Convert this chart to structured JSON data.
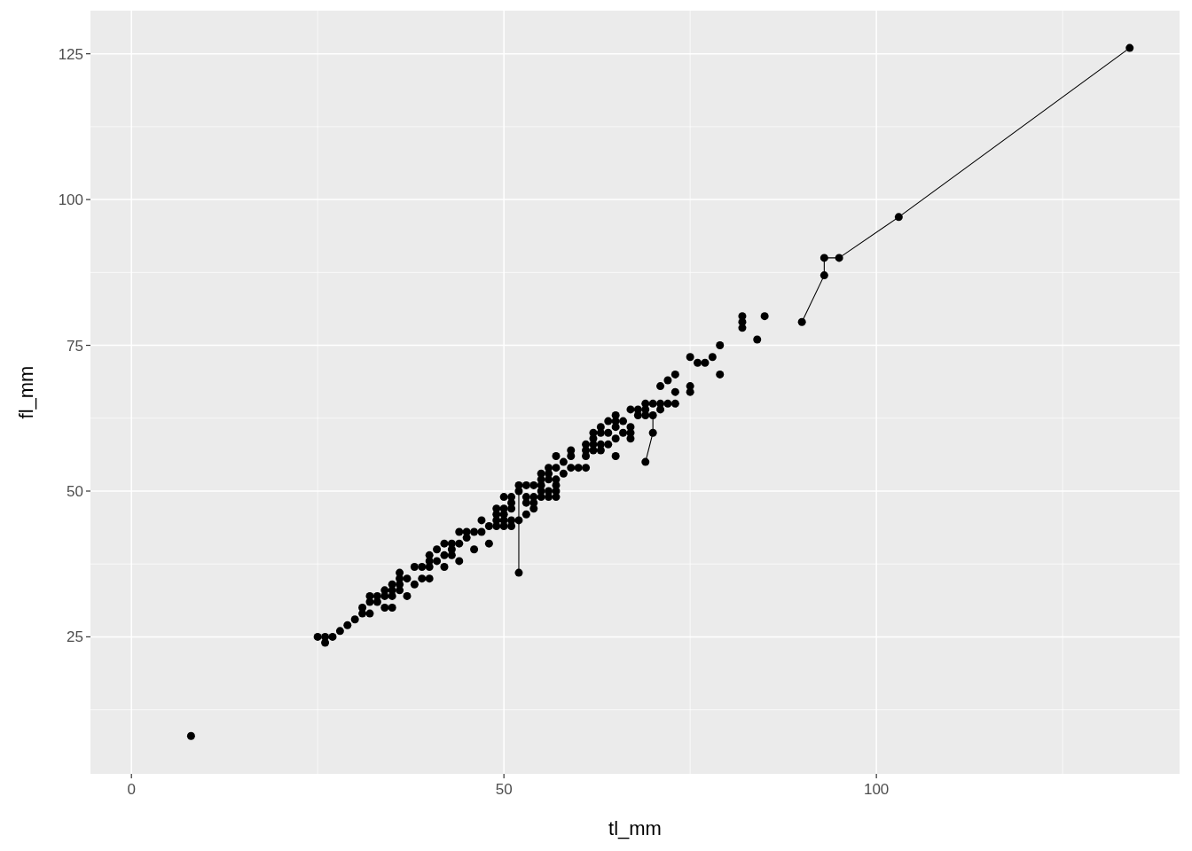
{
  "chart_data": {
    "type": "scatter",
    "xlabel": "tl_mm",
    "ylabel": "fl_mm",
    "xlim": [
      -5.5,
      140.7
    ],
    "ylim": [
      1.5,
      132.4
    ],
    "xticks": [
      0,
      50,
      100
    ],
    "yticks": [
      25,
      50,
      75,
      100,
      125
    ],
    "grid": true,
    "marker": "circle",
    "line_style": "solid",
    "series": [
      {
        "type": "line",
        "marker": "none",
        "color": "#000000",
        "x": [
          52,
          52
        ],
        "values": [
          36,
          51
        ]
      },
      {
        "type": "line",
        "marker": "none",
        "color": "#000000",
        "x": [
          69,
          70,
          70
        ],
        "values": [
          55,
          60,
          63
        ]
      },
      {
        "type": "line",
        "marker": "none",
        "color": "#000000",
        "x": [
          90,
          93,
          93,
          95,
          103,
          134
        ],
        "values": [
          79,
          87,
          90,
          90,
          97,
          126
        ]
      },
      {
        "color": "#000000",
        "x": [
          8,
          25,
          26,
          26,
          27,
          28,
          29,
          30,
          31,
          31,
          32,
          32,
          32,
          33,
          33,
          34,
          34,
          34,
          35,
          35,
          35,
          35,
          36,
          36,
          36,
          36,
          37,
          37,
          38,
          38,
          39,
          39,
          40,
          40,
          40,
          40,
          41,
          41,
          42,
          42,
          42,
          43,
          43,
          43,
          44,
          44,
          44,
          45,
          45,
          46,
          46,
          47,
          47,
          48,
          48,
          49,
          49,
          49,
          49,
          50,
          50,
          50,
          50,
          50,
          51,
          51,
          51,
          51,
          51,
          52,
          52,
          52,
          52,
          53,
          53,
          53,
          53,
          54,
          54,
          54,
          54,
          55,
          55,
          55,
          55,
          55,
          56,
          56,
          56,
          56,
          56,
          57,
          57,
          57,
          57,
          57,
          57,
          58,
          58,
          59,
          59,
          59,
          60,
          61,
          61,
          61,
          61,
          62,
          62,
          62,
          62,
          63,
          63,
          63,
          63,
          64,
          64,
          64,
          65,
          65,
          65,
          65,
          65,
          66,
          66,
          67,
          67,
          67,
          67,
          68,
          68,
          69,
          69,
          69,
          69,
          70,
          70,
          70,
          71,
          71,
          71,
          72,
          72,
          73,
          73,
          73,
          75,
          75,
          75,
          76,
          77,
          78,
          79,
          79,
          82,
          82,
          82,
          84,
          85,
          90,
          93,
          93,
          95,
          103,
          134
        ],
        "values": [
          8,
          25,
          24,
          25,
          25,
          26,
          27,
          28,
          29,
          30,
          29,
          31,
          32,
          31,
          32,
          30,
          32,
          33,
          30,
          32,
          33,
          34,
          33,
          34,
          35,
          36,
          32,
          35,
          34,
          37,
          35,
          37,
          35,
          37,
          38,
          39,
          38,
          40,
          37,
          39,
          41,
          39,
          40,
          41,
          38,
          41,
          43,
          42,
          43,
          40,
          43,
          43,
          45,
          41,
          44,
          44,
          45,
          46,
          47,
          44,
          45,
          46,
          47,
          49,
          44,
          45,
          47,
          48,
          49,
          36,
          45,
          50,
          51,
          46,
          48,
          49,
          51,
          47,
          48,
          49,
          51,
          49,
          50,
          51,
          52,
          53,
          49,
          50,
          52,
          53,
          54,
          49,
          50,
          51,
          52,
          54,
          56,
          53,
          55,
          54,
          56,
          57,
          54,
          54,
          56,
          57,
          58,
          57,
          58,
          59,
          60,
          57,
          58,
          60,
          61,
          58,
          60,
          62,
          56,
          59,
          61,
          62,
          63,
          60,
          62,
          59,
          60,
          61,
          64,
          63,
          64,
          55,
          63,
          64,
          65,
          60,
          63,
          65,
          64,
          65,
          68,
          65,
          69,
          65,
          67,
          70,
          67,
          68,
          73,
          72,
          72,
          73,
          70,
          75,
          78,
          79,
          80,
          76,
          80,
          79,
          87,
          90,
          90,
          97,
          126
        ]
      }
    ]
  }
}
